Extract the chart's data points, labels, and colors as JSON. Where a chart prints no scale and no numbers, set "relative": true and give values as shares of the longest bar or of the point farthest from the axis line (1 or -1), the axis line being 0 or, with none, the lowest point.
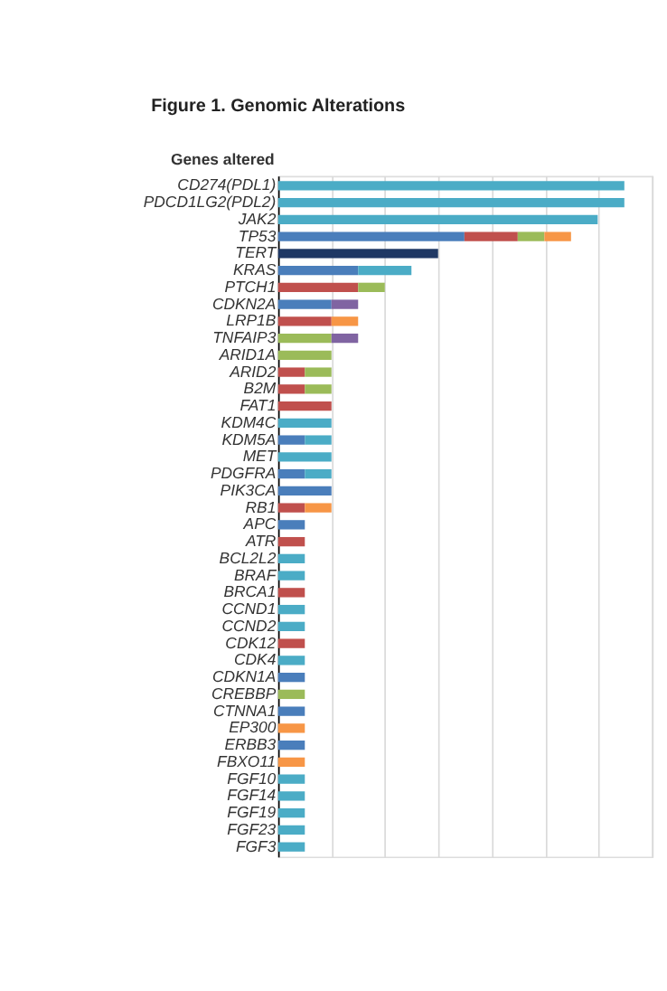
{
  "chart_data": {
    "type": "bar",
    "orientation": "horizontal",
    "stacked": true,
    "relative": true,
    "grid": "x",
    "title": "Figure 1. Genomic Alterations",
    "ylabel": "Genes altered",
    "categories": [
      "CD274(PDL1)",
      "PDCD1LG2(PDL2)",
      "JAK2",
      "TP53",
      "TERT",
      "KRAS",
      "PTCH1",
      "CDKN2A",
      "LRP1B",
      "TNFAIP3",
      "ARID1A",
      "ARID2",
      "B2M",
      "FAT1",
      "KDM4C",
      "KDM5A",
      "MET",
      "PDGFRA",
      "PIK3CA",
      "RB1",
      "APC",
      "ATR",
      "BCL2L2",
      "BRAF",
      "BRCA1",
      "CCND1",
      "CCND2",
      "CDK12",
      "CDK4",
      "CDKN1A",
      "CREBBP",
      "CTNNA1",
      "EP300",
      "ERBB3",
      "FBXO11",
      "FGF10",
      "FGF14",
      "FGF19",
      "FGF23",
      "FGF3"
    ],
    "series": [
      {
        "color": "#4a7ebb",
        "values": [
          null,
          null,
          null,
          0.538,
          null,
          0.231,
          null,
          0.154,
          null,
          null,
          null,
          null,
          null,
          null,
          null,
          0.077,
          null,
          0.077,
          0.154,
          null,
          0.077,
          null,
          null,
          null,
          null,
          null,
          null,
          null,
          null,
          0.077,
          null,
          0.077,
          null,
          0.077,
          null,
          null,
          null,
          null,
          null,
          null
        ]
      },
      {
        "color": "#1f3864",
        "values": [
          null,
          null,
          null,
          null,
          0.462,
          null,
          null,
          null,
          null,
          null,
          null,
          null,
          null,
          null,
          null,
          null,
          null,
          null,
          null,
          null,
          null,
          null,
          null,
          null,
          null,
          null,
          null,
          null,
          null,
          null,
          null,
          null,
          null,
          null,
          null,
          null,
          null,
          null,
          null,
          null
        ]
      },
      {
        "color": "#c0504d",
        "values": [
          null,
          null,
          null,
          0.154,
          null,
          null,
          0.231,
          null,
          0.154,
          null,
          null,
          0.077,
          0.077,
          0.154,
          null,
          null,
          null,
          null,
          null,
          0.077,
          null,
          0.077,
          null,
          null,
          0.077,
          null,
          null,
          0.077,
          null,
          null,
          null,
          null,
          null,
          null,
          null,
          null,
          null,
          null,
          null,
          null
        ]
      },
      {
        "color": "#4bacc6",
        "values": [
          1,
          1,
          0.923,
          null,
          null,
          0.154,
          null,
          null,
          null,
          null,
          null,
          null,
          null,
          null,
          0.154,
          0.077,
          0.154,
          0.077,
          null,
          null,
          null,
          null,
          0.077,
          0.077,
          null,
          0.077,
          0.077,
          null,
          0.077,
          null,
          null,
          null,
          null,
          null,
          null,
          0.077,
          0.077,
          0.077,
          0.077,
          0.077
        ]
      },
      {
        "color": "#9bbb59",
        "values": [
          null,
          null,
          null,
          0.077,
          null,
          null,
          0.077,
          null,
          null,
          0.154,
          0.154,
          0.077,
          0.077,
          null,
          null,
          null,
          null,
          null,
          null,
          null,
          null,
          null,
          null,
          null,
          null,
          null,
          null,
          null,
          null,
          null,
          0.077,
          null,
          null,
          null,
          null,
          null,
          null,
          null,
          null,
          null
        ]
      },
      {
        "color": "#f79646",
        "values": [
          null,
          null,
          null,
          0.077,
          null,
          null,
          null,
          null,
          0.077,
          null,
          null,
          null,
          null,
          null,
          null,
          null,
          null,
          null,
          null,
          0.077,
          null,
          null,
          null,
          null,
          null,
          null,
          null,
          null,
          null,
          null,
          null,
          null,
          0.077,
          null,
          0.077,
          null,
          null,
          null,
          null,
          null
        ]
      },
      {
        "color": "#8064a2",
        "values": [
          null,
          null,
          null,
          null,
          null,
          null,
          null,
          0.077,
          null,
          0.077,
          null,
          null,
          null,
          null,
          null,
          null,
          null,
          null,
          null,
          null,
          null,
          null,
          null,
          null,
          null,
          null,
          null,
          null,
          null,
          null,
          null,
          null,
          null,
          null,
          null,
          null,
          null,
          null,
          null,
          null
        ]
      }
    ]
  }
}
